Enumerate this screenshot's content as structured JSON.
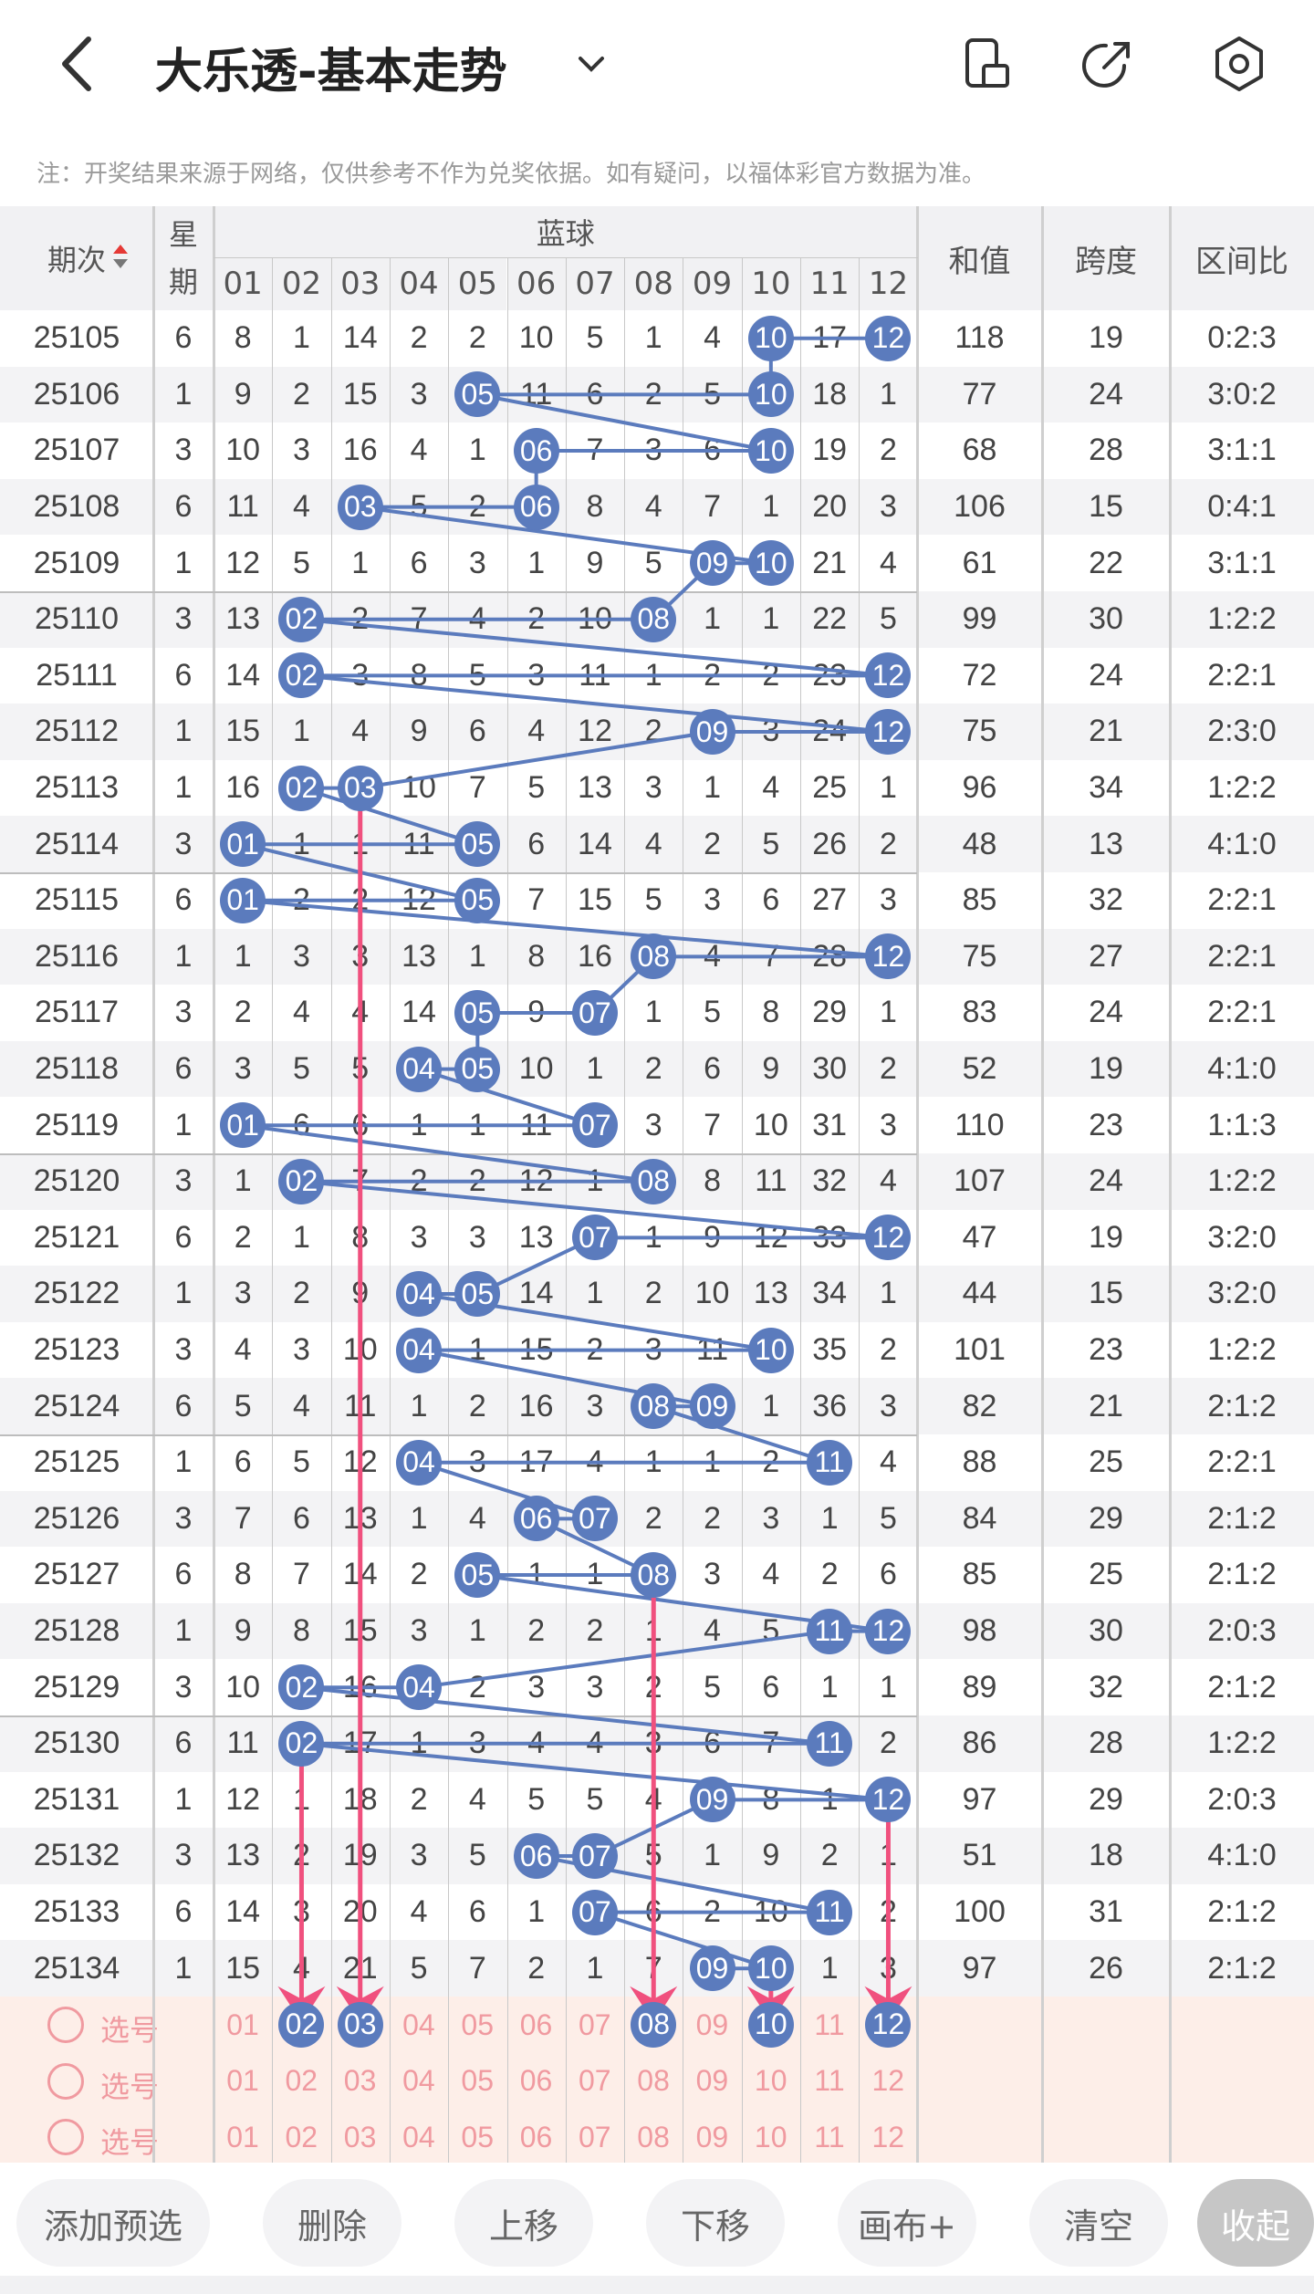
{
  "header": {
    "title": "大乐透-基本走势",
    "note": "注：开奖结果来源于网络，仅供参考不作为兑奖依据。如有疑问，以福体彩官方数据为准。"
  },
  "table": {
    "col_issue": "期次",
    "col_week_1": "星",
    "col_week_2": "期",
    "col_blue": "蓝球",
    "col_sum": "和值",
    "col_span": "跨度",
    "col_ratio": "区间比",
    "numbers": [
      "01",
      "02",
      "03",
      "04",
      "05",
      "06",
      "07",
      "08",
      "09",
      "10",
      "11",
      "12"
    ],
    "rows": [
      {
        "issue": "25105",
        "week": "6",
        "cells": [
          "8",
          "1",
          "14",
          "2",
          "2",
          "10",
          "5",
          "1",
          "4",
          "10",
          "17",
          "12"
        ],
        "hits": [
          10,
          12
        ],
        "sum": "118",
        "span": "19",
        "ratio": "0:2:3"
      },
      {
        "issue": "25106",
        "week": "1",
        "cells": [
          "9",
          "2",
          "15",
          "3",
          "05",
          "11",
          "6",
          "2",
          "5",
          "10",
          "18",
          "1"
        ],
        "hits": [
          5,
          10
        ],
        "sum": "77",
        "span": "24",
        "ratio": "3:0:2"
      },
      {
        "issue": "25107",
        "week": "3",
        "cells": [
          "10",
          "3",
          "16",
          "4",
          "1",
          "06",
          "7",
          "3",
          "6",
          "10",
          "19",
          "2"
        ],
        "hits": [
          6,
          10
        ],
        "sum": "68",
        "span": "28",
        "ratio": "3:1:1"
      },
      {
        "issue": "25108",
        "week": "6",
        "cells": [
          "11",
          "4",
          "03",
          "5",
          "2",
          "06",
          "8",
          "4",
          "7",
          "1",
          "20",
          "3"
        ],
        "hits": [
          3,
          6
        ],
        "sum": "106",
        "span": "15",
        "ratio": "0:4:1"
      },
      {
        "issue": "25109",
        "week": "1",
        "cells": [
          "12",
          "5",
          "1",
          "6",
          "3",
          "1",
          "9",
          "5",
          "09",
          "10",
          "21",
          "4"
        ],
        "hits": [
          9,
          10
        ],
        "sum": "61",
        "span": "22",
        "ratio": "3:1:1"
      },
      {
        "issue": "25110",
        "week": "3",
        "cells": [
          "13",
          "02",
          "2",
          "7",
          "4",
          "2",
          "10",
          "08",
          "1",
          "1",
          "22",
          "5"
        ],
        "hits": [
          2,
          8
        ],
        "sum": "99",
        "span": "30",
        "ratio": "1:2:2"
      },
      {
        "issue": "25111",
        "week": "6",
        "cells": [
          "14",
          "02",
          "3",
          "8",
          "5",
          "3",
          "11",
          "1",
          "2",
          "2",
          "23",
          "12"
        ],
        "hits": [
          2,
          12
        ],
        "sum": "72",
        "span": "24",
        "ratio": "2:2:1"
      },
      {
        "issue": "25112",
        "week": "1",
        "cells": [
          "15",
          "1",
          "4",
          "9",
          "6",
          "4",
          "12",
          "2",
          "09",
          "3",
          "24",
          "12"
        ],
        "hits": [
          9,
          12
        ],
        "sum": "75",
        "span": "21",
        "ratio": "2:3:0"
      },
      {
        "issue": "25113",
        "week": "1",
        "cells": [
          "16",
          "02",
          "03",
          "10",
          "7",
          "5",
          "13",
          "3",
          "1",
          "4",
          "25",
          "1"
        ],
        "hits": [
          2,
          3
        ],
        "sum": "96",
        "span": "34",
        "ratio": "1:2:2"
      },
      {
        "issue": "25114",
        "week": "3",
        "cells": [
          "01",
          "1",
          "1",
          "11",
          "05",
          "6",
          "14",
          "4",
          "2",
          "5",
          "26",
          "2"
        ],
        "hits": [
          1,
          5
        ],
        "sum": "48",
        "span": "13",
        "ratio": "4:1:0"
      },
      {
        "issue": "25115",
        "week": "6",
        "cells": [
          "01",
          "2",
          "2",
          "12",
          "05",
          "7",
          "15",
          "5",
          "3",
          "6",
          "27",
          "3"
        ],
        "hits": [
          1,
          5
        ],
        "sum": "85",
        "span": "32",
        "ratio": "2:2:1"
      },
      {
        "issue": "25116",
        "week": "1",
        "cells": [
          "1",
          "3",
          "3",
          "13",
          "1",
          "8",
          "16",
          "08",
          "4",
          "7",
          "28",
          "12"
        ],
        "hits": [
          8,
          12
        ],
        "sum": "75",
        "span": "27",
        "ratio": "2:2:1"
      },
      {
        "issue": "25117",
        "week": "3",
        "cells": [
          "2",
          "4",
          "4",
          "14",
          "05",
          "9",
          "07",
          "1",
          "5",
          "8",
          "29",
          "1"
        ],
        "hits": [
          5,
          7
        ],
        "sum": "83",
        "span": "24",
        "ratio": "2:2:1"
      },
      {
        "issue": "25118",
        "week": "6",
        "cells": [
          "3",
          "5",
          "5",
          "04",
          "05",
          "10",
          "1",
          "2",
          "6",
          "9",
          "30",
          "2"
        ],
        "hits": [
          4,
          5
        ],
        "sum": "52",
        "span": "19",
        "ratio": "4:1:0"
      },
      {
        "issue": "25119",
        "week": "1",
        "cells": [
          "01",
          "6",
          "6",
          "1",
          "1",
          "11",
          "07",
          "3",
          "7",
          "10",
          "31",
          "3"
        ],
        "hits": [
          1,
          7
        ],
        "sum": "110",
        "span": "23",
        "ratio": "1:1:3"
      },
      {
        "issue": "25120",
        "week": "3",
        "cells": [
          "1",
          "02",
          "7",
          "2",
          "2",
          "12",
          "1",
          "08",
          "8",
          "11",
          "32",
          "4"
        ],
        "hits": [
          2,
          8
        ],
        "sum": "107",
        "span": "24",
        "ratio": "1:2:2"
      },
      {
        "issue": "25121",
        "week": "6",
        "cells": [
          "2",
          "1",
          "8",
          "3",
          "3",
          "13",
          "07",
          "1",
          "9",
          "12",
          "33",
          "12"
        ],
        "hits": [
          7,
          12
        ],
        "sum": "47",
        "span": "19",
        "ratio": "3:2:0"
      },
      {
        "issue": "25122",
        "week": "1",
        "cells": [
          "3",
          "2",
          "9",
          "04",
          "05",
          "14",
          "1",
          "2",
          "10",
          "13",
          "34",
          "1"
        ],
        "hits": [
          4,
          5
        ],
        "sum": "44",
        "span": "15",
        "ratio": "3:2:0"
      },
      {
        "issue": "25123",
        "week": "3",
        "cells": [
          "4",
          "3",
          "10",
          "04",
          "1",
          "15",
          "2",
          "3",
          "11",
          "10",
          "35",
          "2"
        ],
        "hits": [
          4,
          10
        ],
        "sum": "101",
        "span": "23",
        "ratio": "1:2:2"
      },
      {
        "issue": "25124",
        "week": "6",
        "cells": [
          "5",
          "4",
          "11",
          "1",
          "2",
          "16",
          "3",
          "08",
          "09",
          "1",
          "36",
          "3"
        ],
        "hits": [
          8,
          9
        ],
        "sum": "82",
        "span": "21",
        "ratio": "2:1:2"
      },
      {
        "issue": "25125",
        "week": "1",
        "cells": [
          "6",
          "5",
          "12",
          "04",
          "3",
          "17",
          "4",
          "1",
          "1",
          "2",
          "11",
          "4"
        ],
        "hits": [
          4,
          11
        ],
        "sum": "88",
        "span": "25",
        "ratio": "2:2:1"
      },
      {
        "issue": "25126",
        "week": "3",
        "cells": [
          "7",
          "6",
          "13",
          "1",
          "4",
          "06",
          "07",
          "2",
          "2",
          "3",
          "1",
          "5"
        ],
        "hits": [
          6,
          7
        ],
        "sum": "84",
        "span": "29",
        "ratio": "2:1:2"
      },
      {
        "issue": "25127",
        "week": "6",
        "cells": [
          "8",
          "7",
          "14",
          "2",
          "05",
          "1",
          "1",
          "08",
          "3",
          "4",
          "2",
          "6"
        ],
        "hits": [
          5,
          8
        ],
        "sum": "85",
        "span": "25",
        "ratio": "2:1:2"
      },
      {
        "issue": "25128",
        "week": "1",
        "cells": [
          "9",
          "8",
          "15",
          "3",
          "1",
          "2",
          "2",
          "1",
          "4",
          "5",
          "11",
          "12"
        ],
        "hits": [
          11,
          12
        ],
        "sum": "98",
        "span": "30",
        "ratio": "2:0:3"
      },
      {
        "issue": "25129",
        "week": "3",
        "cells": [
          "10",
          "02",
          "16",
          "04",
          "2",
          "3",
          "3",
          "2",
          "5",
          "6",
          "1",
          "1"
        ],
        "hits": [
          2,
          4
        ],
        "sum": "89",
        "span": "32",
        "ratio": "2:1:2"
      },
      {
        "issue": "25130",
        "week": "6",
        "cells": [
          "11",
          "02",
          "17",
          "1",
          "3",
          "4",
          "4",
          "3",
          "6",
          "7",
          "11",
          "2"
        ],
        "hits": [
          2,
          11
        ],
        "sum": "86",
        "span": "28",
        "ratio": "1:2:2"
      },
      {
        "issue": "25131",
        "week": "1",
        "cells": [
          "12",
          "1",
          "18",
          "2",
          "4",
          "5",
          "5",
          "4",
          "09",
          "8",
          "1",
          "12"
        ],
        "hits": [
          9,
          12
        ],
        "sum": "97",
        "span": "29",
        "ratio": "2:0:3"
      },
      {
        "issue": "25132",
        "week": "3",
        "cells": [
          "13",
          "2",
          "19",
          "3",
          "5",
          "06",
          "07",
          "5",
          "1",
          "9",
          "2",
          "1"
        ],
        "hits": [
          6,
          7
        ],
        "sum": "51",
        "span": "18",
        "ratio": "4:1:0"
      },
      {
        "issue": "25133",
        "week": "6",
        "cells": [
          "14",
          "3",
          "20",
          "4",
          "6",
          "1",
          "07",
          "6",
          "2",
          "10",
          "11",
          "2"
        ],
        "hits": [
          7,
          11
        ],
        "sum": "100",
        "span": "31",
        "ratio": "2:1:2"
      },
      {
        "issue": "25134",
        "week": "1",
        "cells": [
          "15",
          "4",
          "21",
          "5",
          "7",
          "2",
          "1",
          "7",
          "09",
          "10",
          "1",
          "3"
        ],
        "hits": [
          9,
          10
        ],
        "sum": "97",
        "span": "26",
        "ratio": "2:1:2"
      }
    ]
  },
  "picks": {
    "label": "选号",
    "selected": [
      2,
      3,
      8,
      10,
      12
    ]
  },
  "buttons": {
    "add_preselect": "添加预选",
    "delete": "删除",
    "move_up": "上移",
    "move_down": "下移",
    "canvas": "画布+",
    "clear": "清空",
    "collapse": "收起"
  },
  "colors": {
    "ball": "#5b7bbd",
    "arrow": "#f0507e",
    "pick": "#f09aa0"
  }
}
